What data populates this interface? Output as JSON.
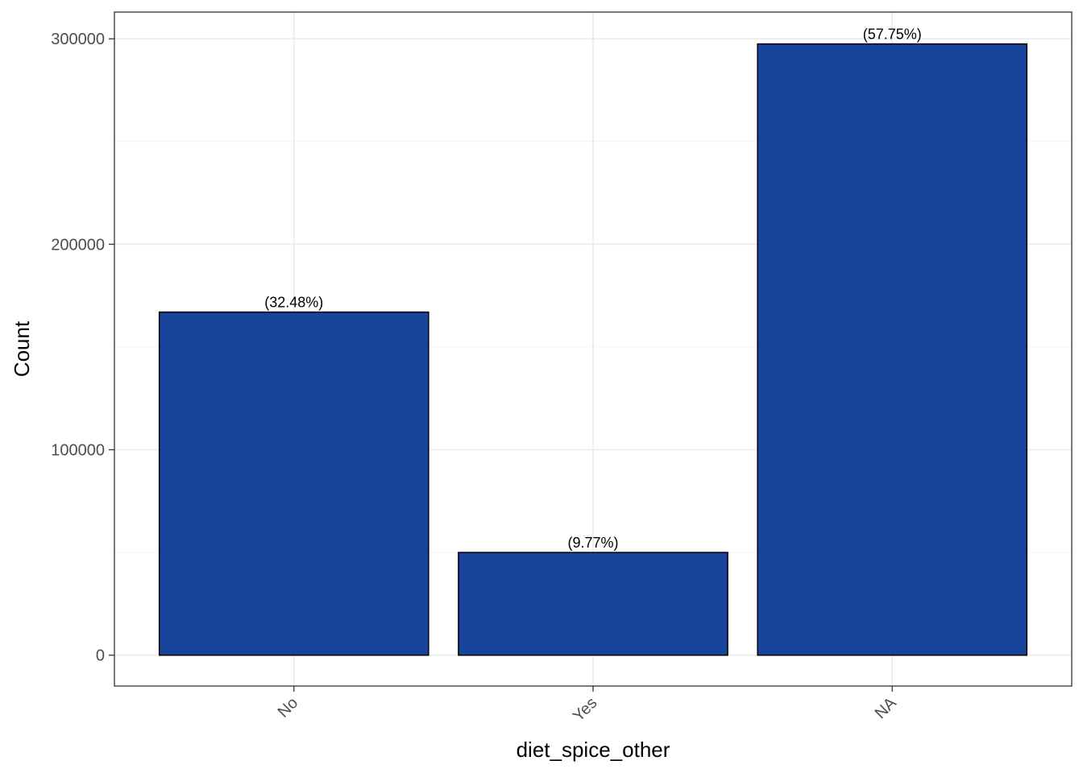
{
  "chart_data": {
    "type": "bar",
    "categories": [
      "No",
      "Yes",
      "NA"
    ],
    "values": [
      167000,
      50000,
      297500
    ],
    "data_labels": [
      "(32.48%)",
      "(9.77%)",
      "(57.75%)"
    ],
    "title": "",
    "xlabel": "diet_spice_other",
    "ylabel": "Count",
    "ylim": [
      -15000,
      313000
    ],
    "yticks": [
      0,
      100000,
      200000,
      300000
    ],
    "ytick_labels": [
      "0",
      "100000",
      "200000",
      "300000"
    ],
    "grid": true,
    "legend": "none",
    "colors": {
      "bar_fill": "#17449A",
      "bar_stroke": "#000000",
      "grid_major": "#EBEBEB",
      "grid_minor": "#F4F4F4",
      "panel_border": "#333333"
    }
  }
}
